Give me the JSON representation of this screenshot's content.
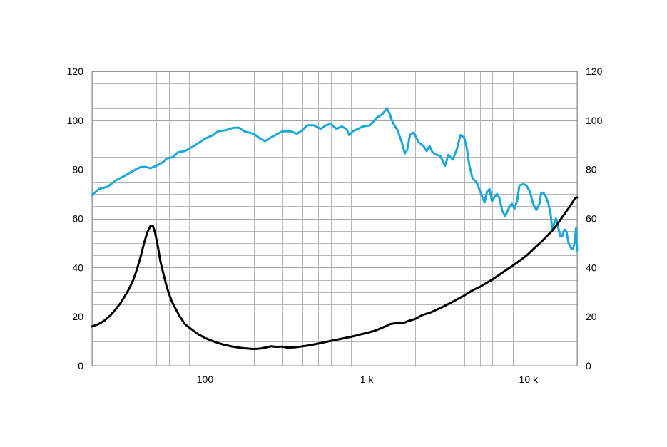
{
  "chart_data": {
    "type": "line",
    "title": "",
    "xlabel": "",
    "ylabel": "",
    "x_scale": "log",
    "xlim": [
      20,
      20000
    ],
    "ylim": [
      0,
      120
    ],
    "grid": true,
    "legend": "none",
    "x_tick_labels": [
      {
        "value": 100,
        "label": "100"
      },
      {
        "value": 1000,
        "label": "1 k"
      },
      {
        "value": 10000,
        "label": "10 k"
      }
    ],
    "y_ticks_left": [
      "0",
      "20",
      "40",
      "60",
      "80",
      "100",
      "120"
    ],
    "y_ticks_right": [
      "0",
      "20",
      "40",
      "60",
      "80",
      "100",
      "120"
    ],
    "series": [
      {
        "color": "#1aa7db",
        "points": [
          [
            20,
            69.5
          ],
          [
            22,
            72
          ],
          [
            25,
            73
          ],
          [
            28,
            75.5
          ],
          [
            32,
            77.5
          ],
          [
            36,
            79.5
          ],
          [
            40,
            81
          ],
          [
            43,
            81
          ],
          [
            46,
            80.5
          ],
          [
            50,
            81.5
          ],
          [
            55,
            83
          ],
          [
            58,
            84.5
          ],
          [
            63,
            85
          ],
          [
            68,
            87
          ],
          [
            75,
            87.5
          ],
          [
            85,
            89.5
          ],
          [
            100,
            92.5
          ],
          [
            112,
            94
          ],
          [
            120,
            95.5
          ],
          [
            135,
            96
          ],
          [
            150,
            97
          ],
          [
            162,
            97
          ],
          [
            175,
            95.5
          ],
          [
            200,
            94.5
          ],
          [
            220,
            92.5
          ],
          [
            235,
            91.5
          ],
          [
            255,
            93
          ],
          [
            300,
            95.5
          ],
          [
            340,
            95.5
          ],
          [
            370,
            94.5
          ],
          [
            400,
            96
          ],
          [
            430,
            98
          ],
          [
            470,
            98
          ],
          [
            520,
            96.5
          ],
          [
            560,
            98
          ],
          [
            600,
            98.5
          ],
          [
            650,
            96.5
          ],
          [
            700,
            97.5
          ],
          [
            750,
            96.5
          ],
          [
            780,
            94
          ],
          [
            820,
            95.5
          ],
          [
            880,
            96.5
          ],
          [
            950,
            97.5
          ],
          [
            1050,
            98
          ],
          [
            1150,
            101
          ],
          [
            1250,
            102.5
          ],
          [
            1330,
            105
          ],
          [
            1380,
            103
          ],
          [
            1450,
            99
          ],
          [
            1550,
            96
          ],
          [
            1650,
            91
          ],
          [
            1720,
            86.5
          ],
          [
            1780,
            88
          ],
          [
            1850,
            94
          ],
          [
            1950,
            95
          ],
          [
            2100,
            91
          ],
          [
            2250,
            89.5
          ],
          [
            2350,
            87.5
          ],
          [
            2450,
            89.5
          ],
          [
            2550,
            87
          ],
          [
            2700,
            86
          ],
          [
            2850,
            85.5
          ],
          [
            3050,
            81.5
          ],
          [
            3200,
            86
          ],
          [
            3400,
            84
          ],
          [
            3600,
            88
          ],
          [
            3800,
            94
          ],
          [
            4000,
            93
          ],
          [
            4150,
            89
          ],
          [
            4300,
            82
          ],
          [
            4500,
            76.5
          ],
          [
            4800,
            74.5
          ],
          [
            5100,
            70
          ],
          [
            5350,
            66.5
          ],
          [
            5550,
            71
          ],
          [
            5750,
            72
          ],
          [
            5950,
            67
          ],
          [
            6200,
            69
          ],
          [
            6400,
            70
          ],
          [
            6600,
            68.5
          ],
          [
            6900,
            63
          ],
          [
            7200,
            61
          ],
          [
            7600,
            64.5
          ],
          [
            7900,
            66
          ],
          [
            8200,
            64
          ],
          [
            8500,
            67
          ],
          [
            8800,
            73.5
          ],
          [
            9300,
            74
          ],
          [
            9700,
            73.5
          ],
          [
            10200,
            71
          ],
          [
            10700,
            66
          ],
          [
            11200,
            63.5
          ],
          [
            11700,
            66
          ],
          [
            12000,
            70.5
          ],
          [
            12400,
            70.5
          ],
          [
            12800,
            69
          ],
          [
            13300,
            66
          ],
          [
            13700,
            62
          ],
          [
            14000,
            56
          ],
          [
            14400,
            58
          ],
          [
            14800,
            60
          ],
          [
            15200,
            57
          ],
          [
            15700,
            53
          ],
          [
            16200,
            53
          ],
          [
            16700,
            55.5
          ],
          [
            17200,
            54.5
          ],
          [
            17700,
            50
          ],
          [
            18300,
            48
          ],
          [
            18800,
            47.5
          ],
          [
            19300,
            50
          ],
          [
            19700,
            56
          ],
          [
            20000,
            47
          ]
        ]
      },
      {
        "color": "#000000",
        "points": [
          [
            20,
            16
          ],
          [
            22,
            17
          ],
          [
            24,
            18.5
          ],
          [
            26,
            20.5
          ],
          [
            28,
            23
          ],
          [
            30,
            25.5
          ],
          [
            32,
            28.5
          ],
          [
            34,
            31.5
          ],
          [
            36,
            35
          ],
          [
            38,
            39.5
          ],
          [
            40,
            44.5
          ],
          [
            42,
            50
          ],
          [
            44,
            54.5
          ],
          [
            46,
            57
          ],
          [
            47.5,
            57
          ],
          [
            49,
            54.5
          ],
          [
            51,
            49
          ],
          [
            53,
            42.5
          ],
          [
            55,
            38
          ],
          [
            58,
            32
          ],
          [
            62,
            26.5
          ],
          [
            66,
            23
          ],
          [
            70,
            20
          ],
          [
            75,
            17
          ],
          [
            80,
            15.5
          ],
          [
            90,
            13
          ],
          [
            100,
            11.3
          ],
          [
            115,
            9.7
          ],
          [
            130,
            8.6
          ],
          [
            150,
            7.7
          ],
          [
            170,
            7.2
          ],
          [
            200,
            6.8
          ],
          [
            220,
            7
          ],
          [
            240,
            7.5
          ],
          [
            255,
            7.9
          ],
          [
            275,
            7.7
          ],
          [
            300,
            7.8
          ],
          [
            320,
            7.4
          ],
          [
            360,
            7.5
          ],
          [
            400,
            7.9
          ],
          [
            450,
            8.4
          ],
          [
            500,
            9
          ],
          [
            600,
            10.1
          ],
          [
            700,
            11
          ],
          [
            800,
            11.8
          ],
          [
            900,
            12.6
          ],
          [
            1000,
            13.4
          ],
          [
            1100,
            14.1
          ],
          [
            1200,
            15
          ],
          [
            1300,
            16
          ],
          [
            1400,
            17
          ],
          [
            1500,
            17.3
          ],
          [
            1600,
            17.4
          ],
          [
            1700,
            17.5
          ],
          [
            1800,
            18.2
          ],
          [
            2000,
            19.1
          ],
          [
            2200,
            20.6
          ],
          [
            2500,
            21.8
          ],
          [
            3000,
            24.2
          ],
          [
            3500,
            26.5
          ],
          [
            4000,
            28.6
          ],
          [
            4500,
            30.7
          ],
          [
            5000,
            32.1
          ],
          [
            6000,
            35.2
          ],
          [
            7000,
            38.2
          ],
          [
            8000,
            40.8
          ],
          [
            9000,
            43.2
          ],
          [
            10000,
            45.6
          ],
          [
            11000,
            48.2
          ],
          [
            12000,
            50.5
          ],
          [
            13000,
            52.8
          ],
          [
            14000,
            55
          ],
          [
            15000,
            57.5
          ],
          [
            16000,
            60.1
          ],
          [
            17000,
            62.6
          ],
          [
            18000,
            64.8
          ],
          [
            19000,
            67.3
          ],
          [
            19500,
            68.4
          ],
          [
            20000,
            68.6
          ]
        ]
      }
    ]
  }
}
